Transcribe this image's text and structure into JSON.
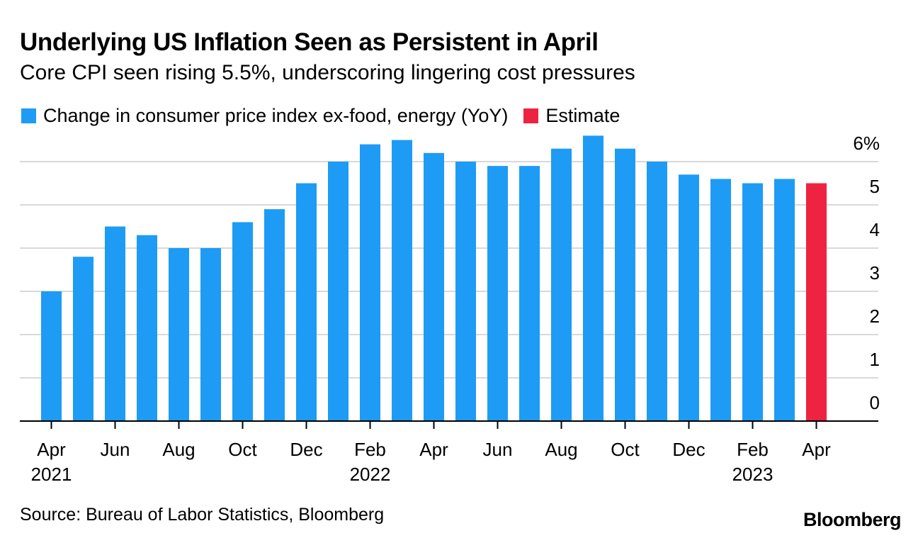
{
  "header": {
    "title": "Underlying US Inflation Seen as Persistent in April",
    "subtitle": "Core CPI seen rising 5.5%, underscoring lingering cost pressures"
  },
  "legend": {
    "items": [
      {
        "label": "Change in consumer price index ex-food, energy (YoY)",
        "color": "#1e9bf5"
      },
      {
        "label": "Estimate",
        "color": "#ee2341"
      }
    ]
  },
  "footer": {
    "source": "Source: Bureau of Labor Statistics, Bloomberg",
    "brand": "Bloomberg"
  },
  "chart_data": {
    "type": "bar",
    "categories": [
      "Apr 2021",
      "May 2021",
      "Jun 2021",
      "Jul 2021",
      "Aug 2021",
      "Sep 2021",
      "Oct 2021",
      "Nov 2021",
      "Dec 2021",
      "Jan 2022",
      "Feb 2022",
      "Mar 2022",
      "Apr 2022",
      "May 2022",
      "Jun 2022",
      "Jul 2022",
      "Aug 2022",
      "Sep 2022",
      "Oct 2022",
      "Nov 2022",
      "Dec 2022",
      "Jan 2023",
      "Feb 2023",
      "Mar 2023",
      "Apr 2023"
    ],
    "series": [
      {
        "name": "Change in consumer price index ex-food, energy (YoY)",
        "color": "#1e9bf5",
        "values": [
          3.0,
          3.8,
          4.5,
          4.3,
          4.0,
          4.0,
          4.6,
          4.9,
          5.5,
          6.0,
          6.4,
          6.5,
          6.2,
          6.0,
          5.9,
          5.9,
          6.3,
          6.6,
          6.3,
          6.0,
          5.7,
          5.6,
          5.5,
          5.6,
          null
        ]
      },
      {
        "name": "Estimate",
        "color": "#ee2341",
        "values": [
          null,
          null,
          null,
          null,
          null,
          null,
          null,
          null,
          null,
          null,
          null,
          null,
          null,
          null,
          null,
          null,
          null,
          null,
          null,
          null,
          null,
          null,
          null,
          null,
          5.5
        ]
      }
    ],
    "x_ticks": [
      {
        "index": 0,
        "label": "Apr",
        "year": "2021"
      },
      {
        "index": 2,
        "label": "Jun",
        "year": ""
      },
      {
        "index": 4,
        "label": "Aug",
        "year": ""
      },
      {
        "index": 6,
        "label": "Oct",
        "year": ""
      },
      {
        "index": 8,
        "label": "Dec",
        "year": ""
      },
      {
        "index": 10,
        "label": "Feb",
        "year": "2022"
      },
      {
        "index": 12,
        "label": "Apr",
        "year": ""
      },
      {
        "index": 14,
        "label": "Jun",
        "year": ""
      },
      {
        "index": 16,
        "label": "Aug",
        "year": ""
      },
      {
        "index": 18,
        "label": "Oct",
        "year": ""
      },
      {
        "index": 20,
        "label": "Dec",
        "year": ""
      },
      {
        "index": 22,
        "label": "Feb",
        "year": "2023"
      },
      {
        "index": 24,
        "label": "Apr",
        "year": ""
      }
    ],
    "y_ticks": [
      {
        "value": 0,
        "label": "0"
      },
      {
        "value": 1,
        "label": "1"
      },
      {
        "value": 2,
        "label": "2"
      },
      {
        "value": 3,
        "label": "3"
      },
      {
        "value": 4,
        "label": "4"
      },
      {
        "value": 5,
        "label": "5"
      },
      {
        "value": 6,
        "label": "6%"
      }
    ],
    "ylim": [
      0,
      6.6
    ],
    "grid": true,
    "y_axis_position": "right",
    "legend_position": "top-left",
    "gridline_color": "#d9d9d9"
  }
}
